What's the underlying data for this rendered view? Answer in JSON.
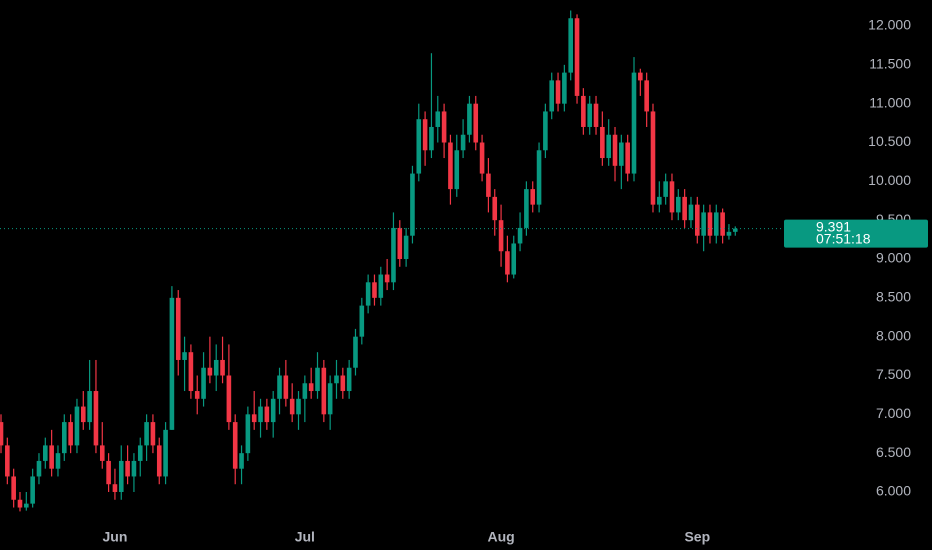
{
  "chart_data": {
    "type": "candlestick",
    "categories": [
      null,
      null,
      null,
      null,
      null,
      null,
      null,
      null,
      null,
      null,
      null,
      null,
      null,
      null,
      null,
      null,
      null,
      null,
      "Jun",
      null,
      null,
      null,
      null,
      null,
      null,
      null,
      null,
      null,
      null,
      null,
      null,
      null,
      null,
      null,
      null,
      null,
      null,
      null,
      null,
      null,
      null,
      null,
      null,
      null,
      null,
      null,
      null,
      null,
      "Jul",
      null,
      null,
      null,
      null,
      null,
      null,
      null,
      null,
      null,
      null,
      null,
      null,
      null,
      null,
      null,
      null,
      null,
      null,
      null,
      null,
      null,
      null,
      null,
      null,
      null,
      null,
      null,
      null,
      null,
      null,
      "Aug",
      null,
      null,
      null,
      null,
      null,
      null,
      null,
      null,
      null,
      null,
      null,
      null,
      null,
      null,
      null,
      null,
      null,
      null,
      null,
      null,
      null,
      null,
      null,
      null,
      null,
      null,
      null,
      null,
      null,
      null,
      "Sep",
      null,
      null,
      null,
      null,
      null,
      null
    ],
    "open": [
      6.9,
      6.6,
      6.2,
      5.9,
      5.8,
      5.85,
      6.2,
      6.4,
      6.6,
      6.3,
      6.5,
      6.9,
      6.6,
      7.1,
      6.9,
      7.3,
      6.6,
      6.4,
      6.1,
      6.0,
      6.4,
      6.2,
      6.4,
      6.6,
      6.9,
      6.6,
      6.2,
      6.8,
      8.5,
      7.7,
      7.8,
      7.3,
      7.2,
      7.6,
      7.5,
      7.7,
      7.5,
      6.9,
      6.3,
      6.5,
      7.0,
      6.9,
      7.1,
      6.9,
      7.2,
      7.5,
      7.2,
      7.0,
      7.2,
      7.4,
      7.3,
      7.6,
      7.0,
      7.4,
      7.5,
      7.3,
      7.6,
      8.0,
      8.4,
      8.7,
      8.5,
      8.8,
      8.7,
      9.4,
      9.0,
      9.3,
      10.1,
      10.8,
      10.4,
      10.7,
      10.9,
      10.5,
      9.9,
      10.4,
      10.6,
      11.0,
      10.5,
      10.1,
      9.8,
      9.5,
      9.1,
      8.8,
      9.2,
      9.4,
      9.9,
      9.7,
      10.4,
      10.9,
      11.3,
      11.0,
      11.4,
      12.1,
      11.1,
      10.7,
      11.0,
      10.7,
      10.3,
      10.6,
      10.2,
      10.5,
      10.1,
      11.4,
      11.3,
      10.9,
      9.7,
      9.8,
      10.0,
      9.6,
      9.8,
      9.5,
      9.7,
      9.3,
      9.6,
      9.3,
      9.6,
      9.3,
      9.35
    ],
    "high": [
      7.0,
      6.7,
      6.3,
      6.0,
      6.0,
      6.3,
      6.5,
      6.7,
      6.8,
      6.6,
      7.0,
      7.0,
      7.2,
      7.3,
      7.7,
      7.7,
      6.9,
      6.5,
      6.3,
      6.6,
      6.6,
      6.5,
      6.7,
      7.0,
      7.0,
      6.7,
      6.9,
      8.65,
      8.6,
      8.0,
      7.9,
      7.5,
      7.8,
      8.0,
      7.9,
      8.0,
      7.9,
      7.0,
      6.6,
      7.1,
      7.3,
      7.2,
      7.2,
      7.3,
      7.6,
      7.7,
      7.4,
      7.3,
      7.5,
      7.6,
      7.8,
      7.7,
      7.5,
      7.7,
      7.6,
      7.7,
      8.1,
      8.5,
      8.8,
      8.8,
      8.9,
      9.0,
      9.6,
      9.5,
      9.4,
      10.2,
      11.0,
      10.9,
      11.65,
      11.1,
      11.0,
      10.6,
      10.6,
      10.8,
      11.1,
      11.1,
      10.6,
      10.3,
      9.9,
      9.7,
      9.3,
      9.3,
      9.6,
      10.0,
      10.0,
      10.5,
      11.0,
      11.4,
      11.4,
      11.5,
      12.2,
      12.15,
      11.2,
      11.1,
      11.1,
      10.9,
      10.8,
      10.7,
      10.6,
      10.6,
      11.6,
      11.45,
      11.4,
      11.0,
      10.0,
      10.1,
      10.1,
      9.9,
      9.9,
      9.8,
      9.8,
      9.7,
      9.7,
      9.7,
      9.65,
      9.45,
      9.42
    ],
    "low": [
      6.5,
      6.1,
      5.8,
      5.75,
      5.76,
      5.8,
      6.1,
      6.3,
      6.2,
      6.2,
      6.4,
      6.5,
      6.5,
      6.8,
      6.8,
      6.5,
      6.3,
      6.0,
      5.9,
      5.9,
      6.1,
      6.0,
      6.2,
      6.4,
      6.5,
      6.1,
      6.1,
      6.8,
      7.5,
      7.3,
      7.2,
      7.0,
      7.1,
      7.4,
      7.3,
      7.4,
      6.8,
      6.1,
      6.1,
      6.4,
      6.8,
      6.7,
      6.8,
      6.7,
      7.0,
      7.1,
      6.9,
      6.8,
      6.9,
      7.2,
      7.2,
      6.9,
      6.8,
      7.2,
      7.2,
      7.2,
      7.5,
      7.9,
      8.3,
      8.4,
      8.4,
      8.6,
      8.6,
      8.9,
      8.9,
      9.2,
      10.0,
      10.2,
      10.3,
      10.5,
      10.3,
      9.7,
      9.8,
      10.3,
      10.5,
      10.4,
      10.0,
      9.6,
      9.3,
      8.9,
      8.7,
      8.75,
      9.1,
      9.3,
      9.6,
      9.6,
      10.3,
      10.8,
      10.9,
      10.9,
      11.3,
      11.0,
      10.6,
      10.6,
      10.6,
      10.2,
      10.2,
      10.0,
      9.9,
      10.0,
      10.0,
      11.1,
      10.7,
      9.6,
      9.6,
      9.7,
      9.5,
      9.5,
      9.4,
      9.4,
      9.2,
      9.1,
      9.2,
      9.2,
      9.2,
      9.25,
      9.3
    ],
    "close": [
      6.6,
      6.2,
      5.9,
      5.8,
      5.85,
      6.2,
      6.4,
      6.6,
      6.3,
      6.5,
      6.9,
      6.6,
      7.1,
      6.9,
      7.3,
      6.6,
      6.4,
      6.1,
      6.0,
      6.4,
      6.2,
      6.4,
      6.6,
      6.9,
      6.6,
      6.2,
      6.8,
      8.5,
      7.7,
      7.8,
      7.3,
      7.2,
      7.6,
      7.5,
      7.7,
      7.5,
      6.9,
      6.3,
      6.5,
      7.0,
      6.9,
      7.1,
      6.9,
      7.2,
      7.5,
      7.2,
      7.0,
      7.2,
      7.4,
      7.3,
      7.6,
      7.0,
      7.4,
      7.5,
      7.3,
      7.6,
      8.0,
      8.4,
      8.7,
      8.5,
      8.8,
      8.7,
      9.4,
      9.0,
      9.3,
      10.1,
      10.8,
      10.4,
      10.7,
      10.9,
      10.5,
      9.9,
      10.4,
      10.6,
      11.0,
      10.5,
      10.1,
      9.8,
      9.5,
      9.1,
      8.8,
      9.2,
      9.4,
      9.9,
      9.7,
      10.4,
      10.9,
      11.3,
      11.0,
      11.4,
      12.1,
      11.1,
      10.7,
      11.0,
      10.7,
      10.3,
      10.6,
      10.2,
      10.5,
      10.1,
      11.4,
      11.3,
      10.9,
      9.7,
      9.8,
      10.0,
      9.6,
      9.8,
      9.5,
      9.7,
      9.3,
      9.6,
      9.3,
      9.6,
      9.3,
      9.35,
      9.391
    ],
    "up_color": "#089981",
    "down_color": "#f23645",
    "ylim": [
      5.575,
      12.335
    ],
    "yticks": [
      {
        "value": 6,
        "label": "6.000"
      },
      {
        "value": 6.5,
        "label": "6.500"
      },
      {
        "value": 7,
        "label": "7.000"
      },
      {
        "value": 7.5,
        "label": "7.500"
      },
      {
        "value": 8,
        "label": "8.000"
      },
      {
        "value": 8.5,
        "label": "8.500"
      },
      {
        "value": 9,
        "label": "9.000"
      },
      {
        "value": 9.5,
        "label": "9.500"
      },
      {
        "value": 10,
        "label": "10.000"
      },
      {
        "value": 10.5,
        "label": "10.500"
      },
      {
        "value": 11,
        "label": "11.000"
      },
      {
        "value": 11.5,
        "label": "11.500"
      },
      {
        "value": 12,
        "label": "12.000"
      }
    ],
    "last_price": 9.391,
    "countdown": "07:51:18"
  }
}
